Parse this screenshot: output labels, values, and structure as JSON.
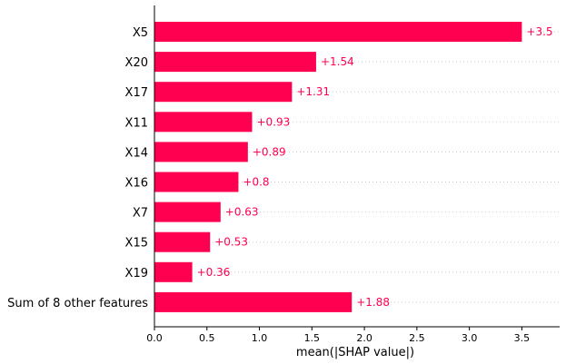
{
  "chart_data": {
    "type": "bar",
    "orientation": "horizontal",
    "categories": [
      "X5",
      "X20",
      "X17",
      "X11",
      "X14",
      "X16",
      "X7",
      "X15",
      "X19",
      "Sum of 8 other features"
    ],
    "values": [
      3.5,
      1.54,
      1.31,
      0.93,
      0.89,
      0.8,
      0.63,
      0.53,
      0.36,
      1.88
    ],
    "value_labels": [
      "+3.5",
      "+1.54",
      "+1.31",
      "+0.93",
      "+0.89",
      "+0.8",
      "+0.63",
      "+0.53",
      "+0.36",
      "+1.88"
    ],
    "xlabel": "mean(|SHAP value|)",
    "ylabel": "",
    "title": "",
    "xlim": [
      0,
      3.86
    ],
    "xticks": [
      0.0,
      0.5,
      1.0,
      1.5,
      2.0,
      2.5,
      3.0,
      3.5
    ],
    "xtick_labels": [
      "0.0",
      "0.5",
      "1.0",
      "1.5",
      "2.0",
      "2.5",
      "3.0",
      "3.5"
    ],
    "grid": "horizontal dotted row guides",
    "legend": "none",
    "colors": {
      "bar": "#ff0051",
      "label": "#ff0051",
      "axis": "#000000",
      "grid": "#cccccc"
    }
  }
}
